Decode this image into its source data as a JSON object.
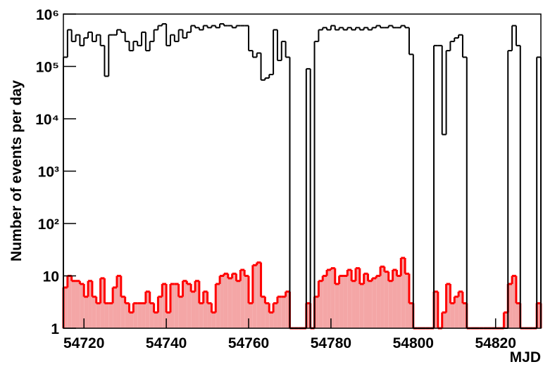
{
  "chart_data": {
    "type": "histogram",
    "x_label": "MJD",
    "y_label": "Number of events per day",
    "ylog": true,
    "bins": [
      54715,
      54716,
      54717,
      54718,
      54719,
      54720,
      54721,
      54722,
      54723,
      54724,
      54725,
      54726,
      54727,
      54728,
      54729,
      54730,
      54731,
      54732,
      54733,
      54734,
      54735,
      54736,
      54737,
      54738,
      54739,
      54740,
      54741,
      54742,
      54743,
      54744,
      54745,
      54746,
      54747,
      54748,
      54749,
      54750,
      54751,
      54752,
      54753,
      54754,
      54755,
      54756,
      54757,
      54758,
      54759,
      54760,
      54761,
      54762,
      54763,
      54764,
      54765,
      54766,
      54767,
      54768,
      54769,
      54770,
      54771,
      54772,
      54773,
      54774,
      54775,
      54776,
      54777,
      54778,
      54779,
      54780,
      54781,
      54782,
      54783,
      54784,
      54785,
      54786,
      54787,
      54788,
      54789,
      54790,
      54791,
      54792,
      54793,
      54794,
      54795,
      54796,
      54797,
      54798,
      54799,
      54800,
      54801,
      54802,
      54803,
      54804,
      54805,
      54806,
      54807,
      54808,
      54809,
      54810,
      54811,
      54812,
      54813,
      54814,
      54815,
      54816,
      54817,
      54818,
      54819,
      54820,
      54821,
      54822,
      54823,
      54824,
      54825,
      54826,
      54827,
      54828,
      54829,
      54830,
      54831
    ],
    "series": [
      {
        "color": "#000000",
        "filled": false,
        "values": [
          150000,
          500000,
          300000,
          400000,
          250000,
          350000,
          450000,
          300000,
          400000,
          250000,
          65000,
          400000,
          400000,
          500000,
          450000,
          300000,
          200000,
          300000,
          250000,
          450000,
          200000,
          300000,
          500000,
          600000,
          650000,
          250000,
          400000,
          300000,
          500000,
          350000,
          450000,
          600000,
          550000,
          500000,
          600000,
          550000,
          600000,
          550000,
          650000,
          600000,
          600000,
          550000,
          600000,
          600000,
          600000,
          200000,
          150000,
          180000,
          55000,
          60000,
          70000,
          500000,
          130000,
          300000,
          150000,
          0,
          0,
          0,
          0,
          90000,
          0,
          300000,
          500000,
          550000,
          500000,
          600000,
          500000,
          550000,
          500000,
          550000,
          500000,
          550000,
          500000,
          550000,
          500000,
          550000,
          600000,
          550000,
          550000,
          600000,
          550000,
          550000,
          600000,
          550000,
          170000,
          0,
          0,
          0,
          0,
          0,
          250000,
          250000,
          5000,
          200000,
          300000,
          350000,
          400000,
          150000,
          0,
          0,
          0,
          0,
          0,
          0,
          0,
          0,
          0,
          0,
          200000,
          600000,
          250000,
          0,
          0,
          0,
          0,
          150000
        ]
      },
      {
        "color": "#ff0000",
        "filled": true,
        "fill_color": "#f4a6a6",
        "values": [
          6,
          10,
          8,
          8,
          7,
          4,
          8,
          4,
          3,
          9,
          3,
          3,
          6,
          10,
          4,
          3,
          2,
          3,
          3,
          3,
          5,
          3,
          2,
          4,
          7,
          2,
          7,
          7,
          4,
          8,
          7,
          5,
          8,
          3,
          5,
          3,
          2,
          7,
          10,
          11,
          9,
          11,
          8,
          13,
          10,
          3,
          16,
          18,
          4,
          3,
          2,
          3,
          4,
          4,
          5,
          0,
          0,
          0,
          0,
          3,
          0,
          4,
          8,
          10,
          13,
          14,
          7,
          10,
          10,
          13,
          8,
          14,
          7,
          11,
          8,
          9,
          10,
          15,
          12,
          8,
          13,
          10,
          22,
          11,
          3,
          0,
          0,
          0,
          0,
          0,
          5,
          0,
          2,
          7,
          3,
          4,
          5,
          3,
          0,
          0,
          0,
          0,
          0,
          0,
          0,
          0,
          0,
          2,
          7,
          10,
          3,
          0,
          0,
          0,
          0,
          3
        ]
      }
    ],
    "xlim": [
      54715,
      54831
    ],
    "xticks": [
      54720,
      54740,
      54760,
      54780,
      54800,
      54820
    ],
    "ylim": [
      1,
      1000000
    ],
    "yticks": [
      1,
      10,
      {
        "value": 100,
        "label": "10²"
      },
      {
        "value": 1000,
        "label": "10³"
      },
      {
        "value": 10000,
        "label": "10⁴"
      },
      {
        "value": 100000,
        "label": "10⁵"
      },
      {
        "value": 1000000,
        "label": "10⁶"
      }
    ]
  }
}
